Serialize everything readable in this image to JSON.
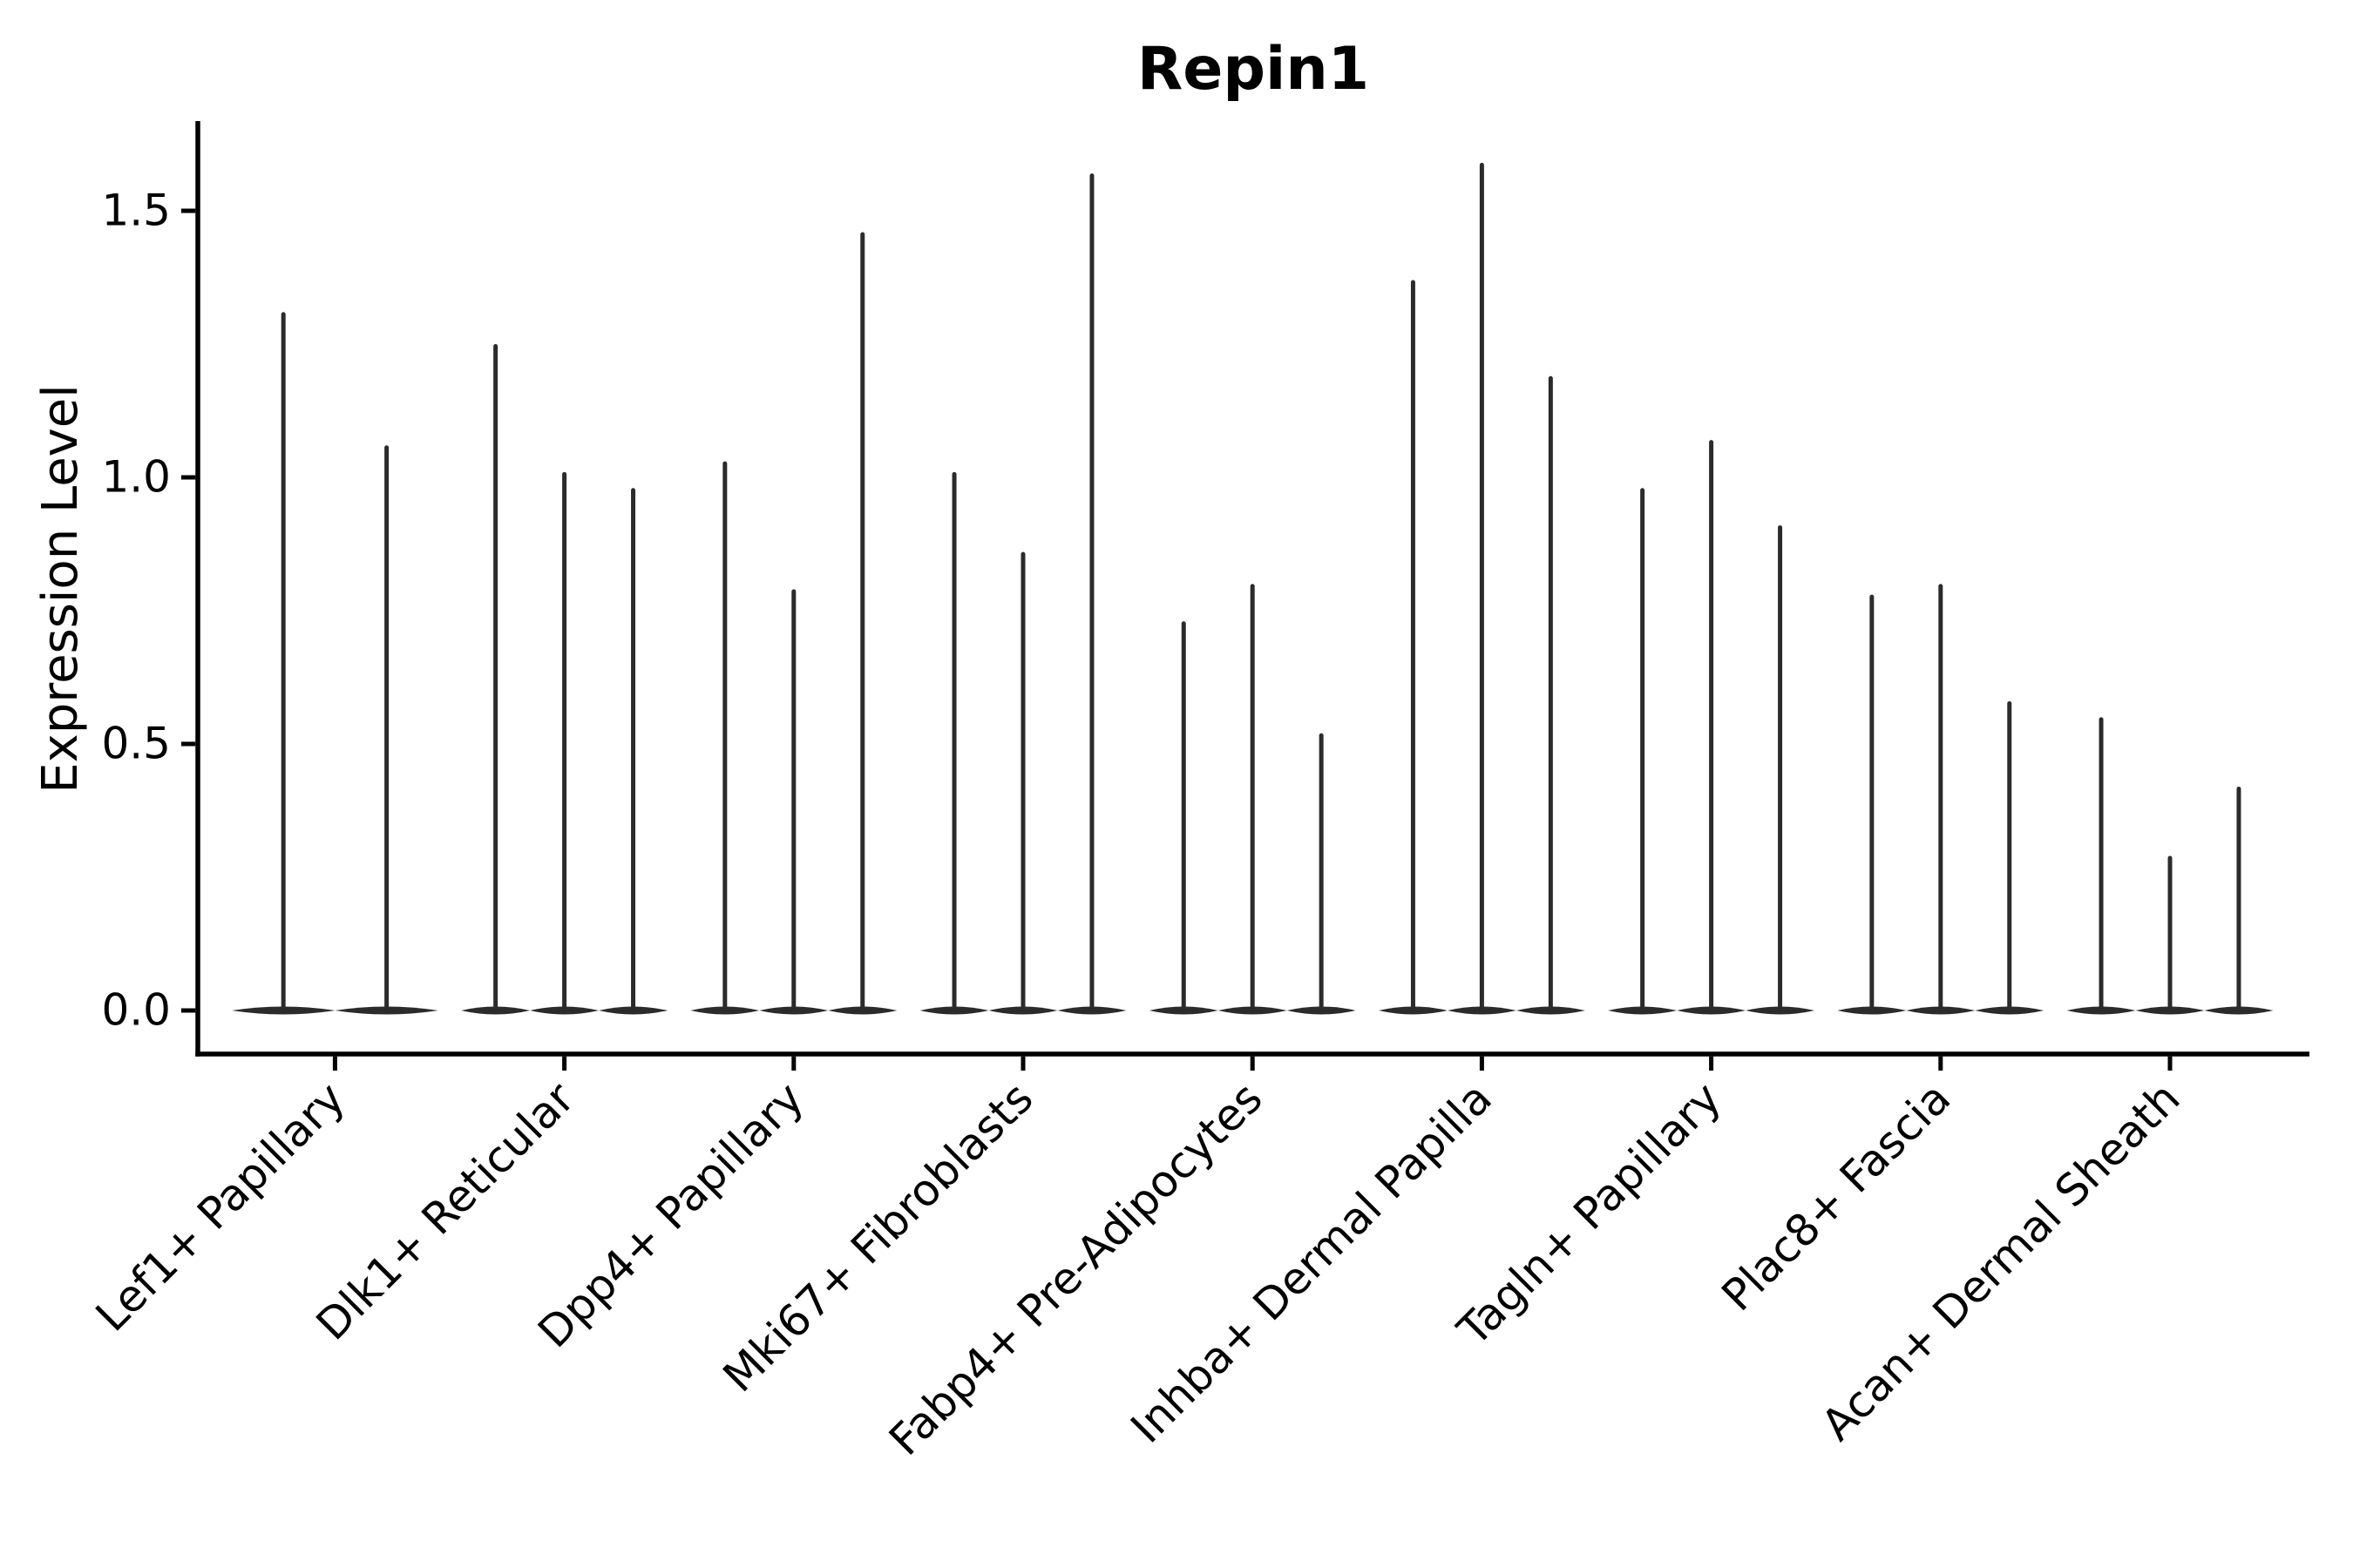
{
  "chart_data": {
    "type": "violin",
    "title": "Repin1",
    "ylabel": "Expression Level",
    "xlabel": "",
    "yticks": [
      0.0,
      0.5,
      1.0,
      1.5
    ],
    "ytick_labels": [
      "0.0",
      "0.5",
      "1.0",
      "1.5"
    ],
    "ylim": [
      -0.08,
      1.67
    ],
    "grid": false,
    "legend_position": "none",
    "categories": [
      "Lef1+ Papillary",
      "Dlk1+ Reticular",
      "Dpp4+ Papillary",
      "Mki67+ Fibroblasts",
      "Fabp4+ Pre-Adipocytes",
      "Inhba+ Dermal Papilla",
      "Tagln+ Papillary",
      "Plac8+ Fascia",
      "Acan+ Dermal Sheath"
    ],
    "groups": [
      {
        "category": "Lef1+ Papillary",
        "violin_maxima": [
          1.31,
          1.06
        ]
      },
      {
        "category": "Dlk1+ Reticular",
        "violin_maxima": [
          1.25,
          1.01,
          0.98
        ]
      },
      {
        "category": "Dpp4+ Papillary",
        "violin_maxima": [
          1.03,
          0.79,
          1.46
        ]
      },
      {
        "category": "Mki67+ Fibroblasts",
        "violin_maxima": [
          1.01,
          0.86,
          1.57
        ]
      },
      {
        "category": "Fabp4+ Pre-Adipocytes",
        "violin_maxima": [
          0.73,
          0.8,
          0.52
        ]
      },
      {
        "category": "Inhba+ Dermal Papilla",
        "violin_maxima": [
          1.37,
          1.59,
          1.19
        ]
      },
      {
        "category": "Tagln+ Papillary",
        "violin_maxima": [
          0.98,
          1.07,
          0.91
        ]
      },
      {
        "category": "Plac8+ Fascia",
        "violin_maxima": [
          0.78,
          0.8,
          0.58
        ]
      },
      {
        "category": "Acan+ Dermal Sheath",
        "violin_maxima": [
          0.55,
          0.29,
          0.42
        ]
      }
    ],
    "colors": {
      "violin": "#2b2b2b",
      "axis": "#000000",
      "text": "#000000",
      "background": "#ffffff"
    }
  }
}
